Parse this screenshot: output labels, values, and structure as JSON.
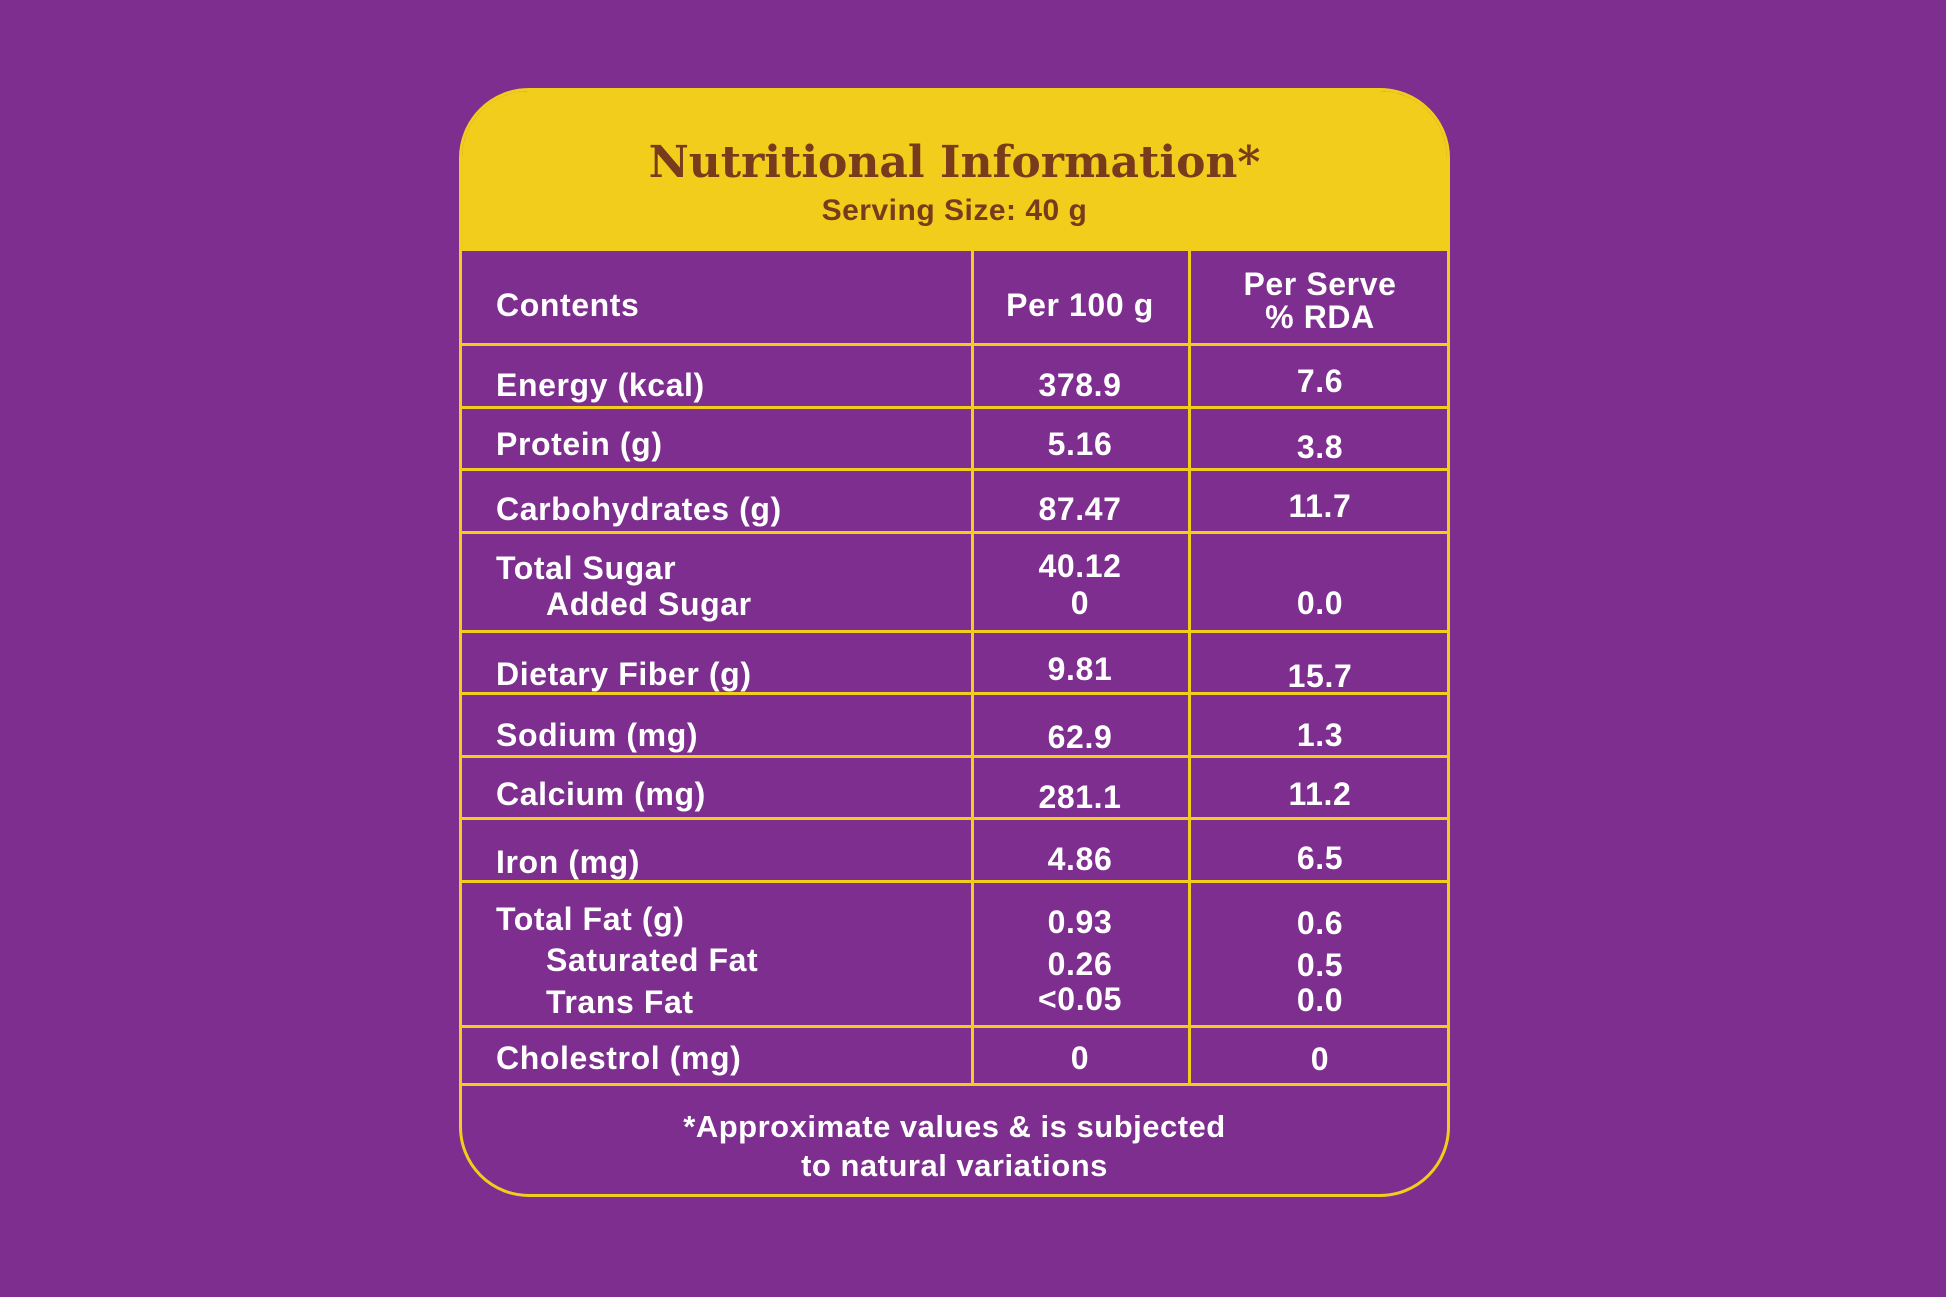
{
  "header": {
    "title": "Nutritional Information*",
    "serving": "Serving Size: 40 g"
  },
  "columns": {
    "contents": "Contents",
    "per100": "Per 100 g",
    "perServe_line1": "Per Serve",
    "perServe_line2": "% RDA"
  },
  "rows": {
    "energy": {
      "label": "Energy (kcal)",
      "per100": "378.9",
      "rda": "7.6"
    },
    "protein": {
      "label": "Protein (g)",
      "per100": "5.16",
      "rda": "3.8"
    },
    "carbs": {
      "label": "Carbohydrates (g)",
      "per100": "87.47",
      "rda": "11.7"
    },
    "sugar": {
      "label": "Total Sugar",
      "per100": "40.12",
      "rda": "",
      "sub_label": "Added Sugar",
      "sub_per100": "0",
      "sub_rda": "0.0"
    },
    "fiber": {
      "label": "Dietary Fiber (g)",
      "per100": "9.81",
      "rda": "15.7"
    },
    "sodium": {
      "label": "Sodium (mg)",
      "per100": "62.9",
      "rda": "1.3"
    },
    "calcium": {
      "label": "Calcium (mg)",
      "per100": "281.1",
      "rda": "11.2"
    },
    "iron": {
      "label": "Iron (mg)",
      "per100": "4.86",
      "rda": "6.5"
    },
    "fat": {
      "label": "Total Fat (g)",
      "per100": "0.93",
      "rda": "0.6",
      "sat_label": "Saturated Fat",
      "sat_per100": "0.26",
      "sat_rda": "0.5",
      "trans_label": "Trans Fat",
      "trans_per100": "<0.05",
      "trans_rda": "0.0"
    },
    "cholesterol": {
      "label": "Cholestrol (mg)",
      "per100": "0",
      "rda": "0"
    }
  },
  "footer": {
    "line1": "*Approximate values & is subjected",
    "line2": "to natural variations"
  },
  "colors": {
    "background": "#7d2e8e",
    "accent": "#f2cd1c",
    "title_text": "#7a3a1c",
    "body_text": "#ffffff"
  }
}
